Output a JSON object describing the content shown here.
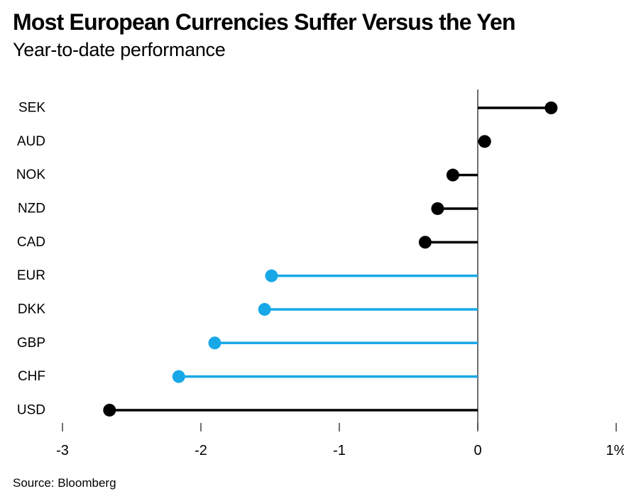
{
  "header": {
    "title": "Most European Currencies Suffer Versus the Yen",
    "subtitle": "Year-to-date performance"
  },
  "source": "Source: Bloomberg",
  "chart_data": {
    "type": "bar",
    "subtype": "horizontal-lollipop",
    "title": "Most European Currencies Suffer Versus the Yen",
    "subtitle": "Year-to-date performance",
    "unit": "%",
    "categories": [
      "SEK",
      "AUD",
      "NOK",
      "NZD",
      "CAD",
      "EUR",
      "DKK",
      "GBP",
      "CHF",
      "USD"
    ],
    "values": [
      0.53,
      0.05,
      -0.18,
      -0.29,
      -0.38,
      -1.49,
      -1.54,
      -1.9,
      -2.16,
      -2.66
    ],
    "colors": [
      "black",
      "black",
      "black",
      "black",
      "black",
      "blue",
      "blue",
      "blue",
      "blue",
      "black"
    ],
    "palette": {
      "black": "#000000",
      "blue": "#18a8e8"
    },
    "xlabel": "",
    "ylabel": "",
    "xlim": [
      -3,
      1
    ],
    "xticks": [
      -3,
      -2,
      -1,
      0,
      1
    ],
    "xtick_labels": [
      "-3",
      "-2",
      "-1",
      "0",
      "1%"
    ],
    "grid": false,
    "legend": false,
    "zero_line": true
  }
}
